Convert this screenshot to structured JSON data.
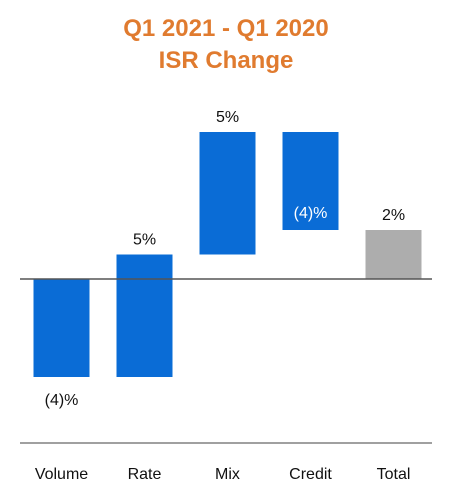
{
  "colors": {
    "title": "#E07B2F",
    "bar": "#0A6CD6",
    "total_bar": "#ADADAD",
    "axis": "#808080",
    "label_dark": "#111111",
    "label_light": "#ffffff"
  },
  "chart_data": {
    "type": "bar",
    "subtype": "waterfall",
    "title_lines": [
      "Q1 2021 - Q1 2020",
      "ISR Change"
    ],
    "categories": [
      "Volume",
      "Rate",
      "Mix",
      "Credit",
      "Total"
    ],
    "values": [
      -4,
      5,
      5,
      -4,
      2
    ],
    "labels": [
      "(4)%",
      "5%",
      "5%",
      "(4)%",
      "2%"
    ],
    "is_total": [
      false,
      false,
      false,
      false,
      true
    ],
    "unit": "%",
    "grid": false,
    "legend": "none"
  }
}
